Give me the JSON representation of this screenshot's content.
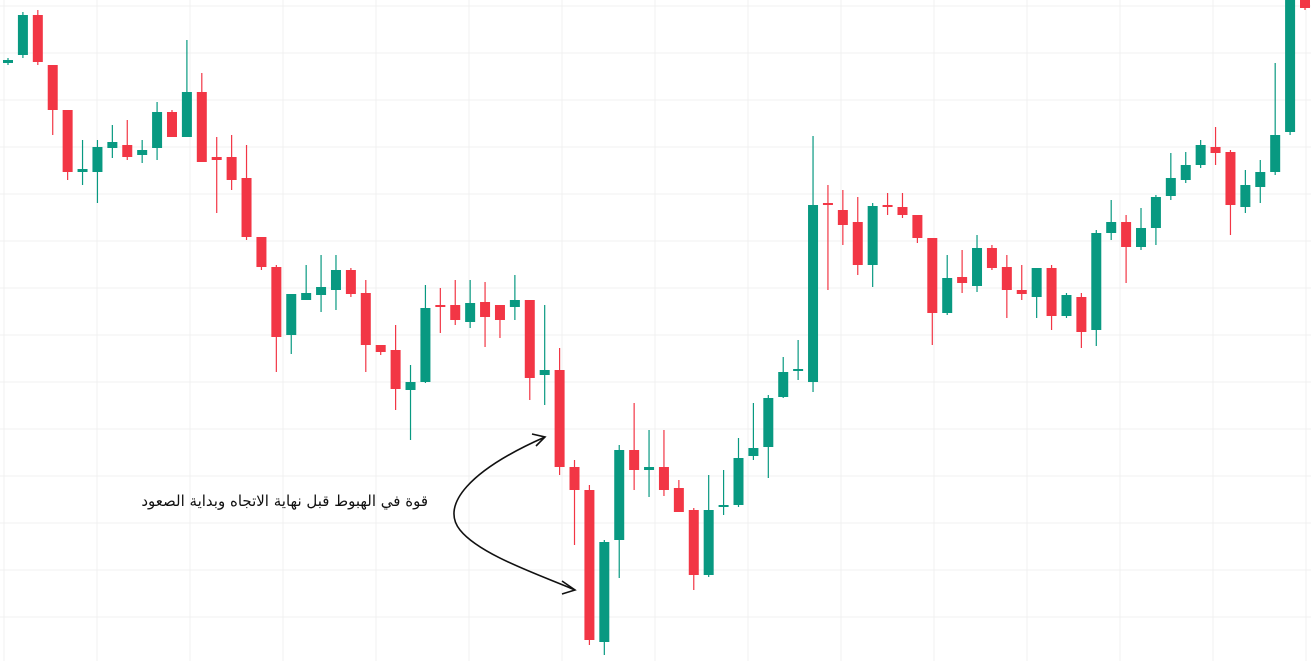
{
  "chart_data": {
    "type": "candlestick",
    "annotation": "قوة في الهبوط قبل نهاية الاتجاه وبداية الصعود",
    "up_color": "#089981",
    "down_color": "#f23645",
    "grid": true,
    "ylim": [
      0,
      661
    ],
    "open": [
      598,
      606,
      646,
      596,
      551,
      489,
      489,
      513,
      516,
      506,
      513,
      549,
      524,
      569,
      504,
      504,
      483,
      424,
      394,
      326,
      361,
      366,
      371,
      391,
      368,
      316,
      311,
      271,
      279,
      356,
      356,
      339,
      359,
      356,
      354,
      361,
      286,
      291,
      194,
      171,
      19,
      121,
      211,
      191,
      194,
      173,
      151,
      86,
      154,
      156,
      205,
      214,
      264,
      291,
      279,
      458,
      451,
      439,
      396,
      456,
      454,
      446,
      423,
      348,
      384,
      375,
      413,
      394,
      371,
      364,
      393,
      345,
      364,
      331,
      428,
      439,
      414,
      433,
      465,
      481,
      496,
      514,
      509,
      454,
      474,
      489,
      529,
      661
    ],
    "high": [
      603,
      649,
      651,
      596,
      551,
      521,
      521,
      536,
      541,
      521,
      559,
      551,
      621,
      588,
      524,
      526,
      516,
      424,
      396,
      367,
      396,
      406,
      406,
      393,
      381,
      316,
      336,
      296,
      376,
      373,
      381,
      381,
      379,
      356,
      386,
      361,
      356,
      313,
      201,
      176,
      121,
      216,
      258,
      231,
      231,
      181,
      153,
      186,
      191,
      223,
      258,
      266,
      304,
      321,
      525,
      476,
      471,
      464,
      458,
      468,
      468,
      446,
      423,
      406,
      411,
      426,
      416,
      406,
      396,
      393,
      396,
      368,
      368,
      431,
      461,
      446,
      453,
      466,
      508,
      509,
      521,
      534,
      511,
      491,
      501,
      598,
      661,
      661
    ],
    "low": [
      596,
      603,
      596,
      526,
      481,
      476,
      458,
      503,
      501,
      498,
      501,
      524,
      524,
      499,
      448,
      471,
      421,
      391,
      289,
      307,
      361,
      349,
      351,
      364,
      289,
      306,
      251,
      221,
      278,
      328,
      336,
      333,
      314,
      323,
      341,
      261,
      256,
      186,
      116,
      16,
      6,
      83,
      171,
      164,
      165,
      149,
      71,
      84,
      146,
      154,
      201,
      183,
      263,
      281,
      269,
      371,
      416,
      386,
      374,
      446,
      443,
      418,
      316,
      346,
      368,
      369,
      391,
      343,
      361,
      343,
      331,
      343,
      313,
      315,
      421,
      378,
      411,
      416,
      461,
      478,
      493,
      496,
      426,
      448,
      458,
      486,
      526,
      651
    ],
    "close": [
      601,
      646,
      599,
      551,
      489,
      492,
      514,
      519,
      504,
      511,
      549,
      524,
      569,
      499,
      501,
      481,
      424,
      394,
      324,
      367,
      368,
      374,
      391,
      367,
      316,
      309,
      272,
      279,
      353,
      355,
      341,
      358,
      344,
      341,
      361,
      283,
      291,
      194,
      171,
      21,
      119,
      211,
      191,
      194,
      171,
      149,
      86,
      151,
      156,
      203,
      213,
      263,
      289,
      292,
      456,
      456,
      436,
      396,
      455,
      455,
      446,
      423,
      348,
      383,
      378,
      413,
      393,
      371,
      367,
      393,
      345,
      366,
      329,
      428,
      439,
      414,
      433,
      464,
      483,
      496,
      516,
      508,
      456,
      476,
      489,
      526,
      661,
      653
    ]
  }
}
